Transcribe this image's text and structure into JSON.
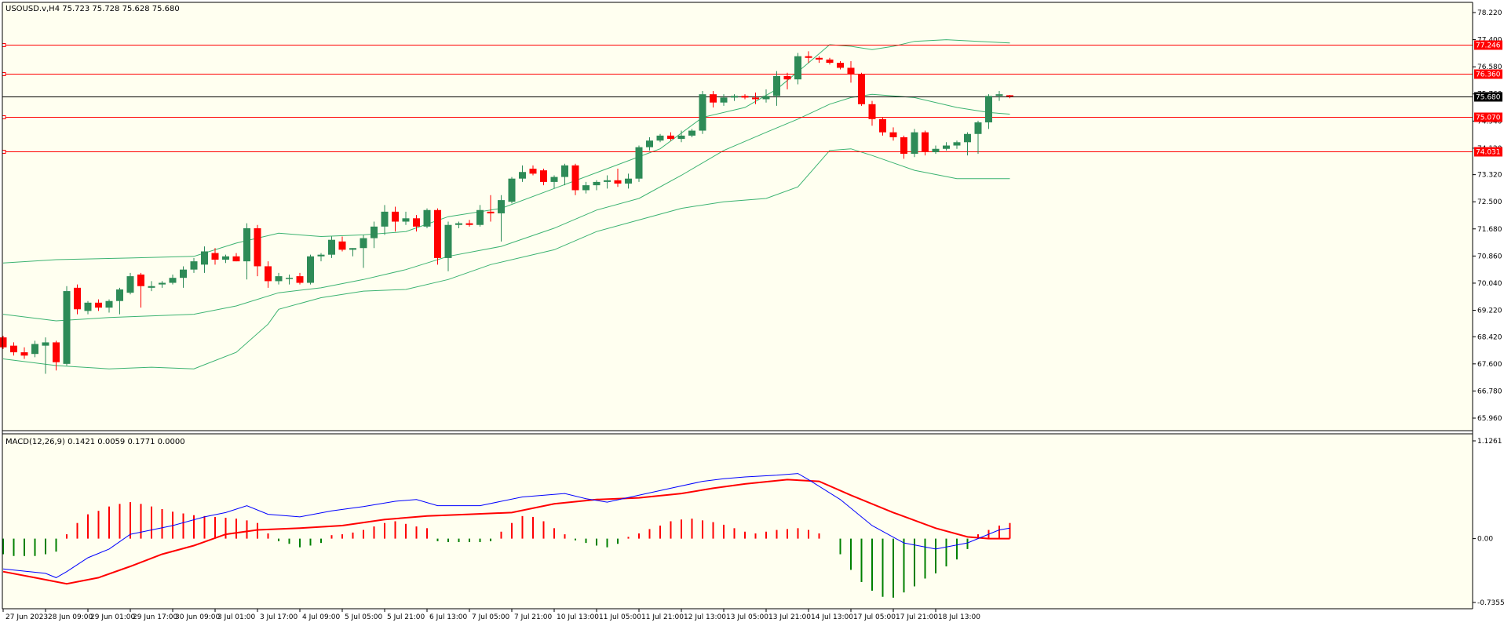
{
  "header": {
    "symbol_line": "USOUSD.v,H4  75.723 75.728 75.628 75.680",
    "macd_line": "MACD(12,26,9) 0.1421 0.0059 0.1771 0.0000"
  },
  "colors": {
    "background": "#fffff0",
    "axis_background": "#ffffff",
    "bull_candle": "#2e8b57",
    "bear_candle": "#ff0000",
    "bollinger": "#3cb371",
    "level_line": "#ff0000",
    "current_price_line": "#000000",
    "macd_line": "#0000ff",
    "signal_line": "#ff0000",
    "hist_positive": "#ff0000",
    "hist_negative": "#008000"
  },
  "chart_data": [
    {
      "type": "candlestick",
      "title": "USOUSD.v,H4",
      "ohlc_readout": [
        "75.723",
        "75.728",
        "75.628",
        "75.680"
      ],
      "y_ticks": [
        "78.220",
        "77.400",
        "76.580",
        "75.760",
        "74.940",
        "74.120",
        "73.320",
        "72.500",
        "71.680",
        "70.860",
        "70.040",
        "69.220",
        "68.420",
        "67.600",
        "66.780",
        "65.960"
      ],
      "ylim": [
        65.96,
        78.22
      ],
      "x_ticks": [
        "27 Jun 2023",
        "28 Jun 09:00",
        "29 Jun 01:00",
        "29 Jun 17:00",
        "30 Jun 09:00",
        "3 Jul 01:00",
        "3 Jul 17:00",
        "4 Jul 09:00",
        "5 Jul 05:00",
        "5 Jul 21:00",
        "6 Jul 13:00",
        "7 Jul 05:00",
        "7 Jul 21:00",
        "10 Jul 13:00",
        "11 Jul 05:00",
        "11 Jul 21:00",
        "12 Jul 13:00",
        "13 Jul 05:00",
        "13 Jul 21:00",
        "14 Jul 13:00",
        "17 Jul 05:00",
        "17 Jul 21:00",
        "18 Jul 13:00"
      ],
      "levels": [
        {
          "price": 77.246,
          "label": "77.246"
        },
        {
          "price": 76.36,
          "label": "76.360"
        },
        {
          "price": 75.07,
          "label": "75.070"
        },
        {
          "price": 74.031,
          "label": "74.031"
        }
      ],
      "current_price": {
        "price": 75.68,
        "label": "75.680"
      },
      "candles": [
        [
          68.4,
          68.45,
          68.05,
          68.1
        ],
        [
          68.15,
          68.25,
          67.85,
          67.95
        ],
        [
          67.95,
          68.1,
          67.75,
          67.85
        ],
        [
          67.9,
          68.3,
          67.8,
          68.2
        ],
        [
          68.15,
          68.4,
          67.3,
          68.25
        ],
        [
          68.25,
          68.3,
          67.4,
          67.65
        ],
        [
          67.6,
          69.95,
          67.55,
          69.8
        ],
        [
          69.9,
          70.0,
          69.1,
          69.25
        ],
        [
          69.2,
          69.5,
          69.1,
          69.45
        ],
        [
          69.45,
          69.55,
          69.2,
          69.3
        ],
        [
          69.3,
          69.55,
          69.15,
          69.5
        ],
        [
          69.5,
          69.9,
          69.1,
          69.85
        ],
        [
          69.75,
          70.35,
          69.7,
          70.25
        ],
        [
          70.3,
          70.35,
          69.3,
          69.95
        ],
        [
          69.9,
          70.1,
          69.8,
          69.95
        ],
        [
          70.0,
          70.1,
          69.9,
          70.05
        ],
        [
          70.05,
          70.3,
          70.0,
          70.2
        ],
        [
          70.2,
          70.55,
          69.9,
          70.45
        ],
        [
          70.45,
          70.8,
          70.35,
          70.7
        ],
        [
          70.6,
          71.15,
          70.35,
          71.0
        ],
        [
          70.95,
          71.1,
          70.6,
          70.75
        ],
        [
          70.75,
          70.9,
          70.65,
          70.85
        ],
        [
          70.85,
          70.95,
          70.7,
          70.7
        ],
        [
          70.7,
          71.85,
          70.15,
          71.7
        ],
        [
          71.7,
          71.8,
          70.25,
          70.55
        ],
        [
          70.55,
          70.7,
          69.9,
          70.1
        ],
        [
          70.1,
          70.35,
          70.0,
          70.25
        ],
        [
          70.2,
          70.3,
          70.0,
          70.2
        ],
        [
          70.25,
          70.35,
          70.0,
          70.05
        ],
        [
          70.05,
          70.9,
          70.0,
          70.85
        ],
        [
          70.85,
          70.95,
          70.7,
          70.9
        ],
        [
          70.9,
          71.45,
          70.8,
          71.35
        ],
        [
          71.3,
          71.45,
          71.0,
          71.05
        ],
        [
          71.05,
          71.1,
          70.85,
          71.1
        ],
        [
          71.1,
          71.5,
          70.5,
          71.4
        ],
        [
          71.4,
          71.9,
          71.1,
          71.75
        ],
        [
          71.75,
          72.4,
          71.5,
          72.2
        ],
        [
          72.2,
          72.35,
          71.6,
          71.9
        ],
        [
          71.9,
          72.2,
          71.8,
          72.0
        ],
        [
          72.0,
          72.1,
          71.6,
          71.75
        ],
        [
          71.75,
          72.3,
          71.7,
          72.25
        ],
        [
          72.25,
          72.3,
          70.6,
          70.8
        ],
        [
          70.8,
          71.9,
          70.4,
          71.8
        ],
        [
          71.8,
          71.9,
          71.7,
          71.85
        ],
        [
          71.85,
          71.95,
          71.75,
          71.8
        ],
        [
          71.8,
          72.4,
          71.75,
          72.25
        ],
        [
          72.2,
          72.7,
          71.9,
          72.15
        ],
        [
          72.15,
          72.7,
          71.3,
          72.55
        ],
        [
          72.5,
          73.25,
          72.45,
          73.2
        ],
        [
          73.2,
          73.6,
          73.1,
          73.4
        ],
        [
          73.5,
          73.6,
          73.3,
          73.35
        ],
        [
          73.45,
          73.5,
          73.0,
          73.1
        ],
        [
          73.1,
          73.3,
          72.9,
          73.25
        ],
        [
          73.25,
          73.65,
          73.0,
          73.6
        ],
        [
          73.6,
          73.65,
          72.7,
          72.85
        ],
        [
          72.85,
          73.1,
          72.75,
          73.0
        ],
        [
          73.0,
          73.15,
          72.85,
          73.1
        ],
        [
          73.1,
          73.3,
          72.9,
          73.15
        ],
        [
          73.15,
          73.5,
          72.95,
          73.05
        ],
        [
          73.05,
          73.35,
          72.9,
          73.2
        ],
        [
          73.2,
          74.2,
          73.1,
          74.15
        ],
        [
          74.15,
          74.45,
          74.05,
          74.35
        ],
        [
          74.35,
          74.55,
          74.3,
          74.5
        ],
        [
          74.5,
          74.6,
          74.35,
          74.4
        ],
        [
          74.4,
          74.65,
          74.3,
          74.5
        ],
        [
          74.5,
          74.7,
          74.45,
          74.65
        ],
        [
          74.65,
          75.85,
          74.55,
          75.75
        ],
        [
          75.75,
          75.85,
          75.35,
          75.5
        ],
        [
          75.5,
          75.75,
          75.4,
          75.65
        ],
        [
          75.65,
          75.75,
          75.55,
          75.7
        ],
        [
          75.7,
          75.75,
          75.6,
          75.65
        ],
        [
          75.65,
          75.8,
          75.45,
          75.6
        ],
        [
          75.6,
          75.9,
          75.5,
          75.7
        ],
        [
          75.7,
          76.45,
          75.4,
          76.3
        ],
        [
          76.3,
          76.4,
          75.9,
          76.2
        ],
        [
          76.2,
          77.0,
          76.05,
          76.9
        ],
        [
          76.9,
          77.05,
          76.7,
          76.85
        ],
        [
          76.85,
          76.9,
          76.7,
          76.8
        ],
        [
          76.8,
          76.85,
          76.65,
          76.7
        ],
        [
          76.7,
          76.75,
          76.5,
          76.55
        ],
        [
          76.55,
          76.75,
          76.1,
          76.35
        ],
        [
          76.35,
          76.4,
          75.4,
          75.45
        ],
        [
          75.45,
          75.55,
          74.8,
          75.0
        ],
        [
          75.0,
          75.05,
          74.5,
          74.6
        ],
        [
          74.6,
          74.75,
          74.35,
          74.45
        ],
        [
          74.45,
          74.5,
          73.8,
          73.95
        ],
        [
          73.95,
          74.7,
          73.85,
          74.6
        ],
        [
          74.6,
          74.65,
          73.9,
          74.0
        ],
        [
          74.0,
          74.2,
          73.95,
          74.1
        ],
        [
          74.1,
          74.3,
          74.05,
          74.2
        ],
        [
          74.2,
          74.35,
          74.1,
          74.3
        ],
        [
          74.3,
          74.6,
          73.9,
          74.55
        ],
        [
          74.55,
          74.95,
          73.95,
          74.9
        ],
        [
          74.9,
          75.75,
          74.7,
          75.7
        ],
        [
          75.7,
          75.85,
          75.55,
          75.75
        ],
        [
          75.72,
          75.73,
          75.63,
          75.68
        ]
      ],
      "bollinger_upper": [
        [
          0,
          70.65
        ],
        [
          5,
          70.75
        ],
        [
          12,
          70.8
        ],
        [
          18,
          70.85
        ],
        [
          22,
          71.25
        ],
        [
          26,
          71.55
        ],
        [
          30,
          71.45
        ],
        [
          34,
          71.5
        ],
        [
          38,
          71.6
        ],
        [
          42,
          72.05
        ],
        [
          47,
          72.3
        ],
        [
          52,
          72.9
        ],
        [
          57,
          73.5
        ],
        [
          62,
          74.1
        ],
        [
          66,
          75.05
        ],
        [
          70,
          75.35
        ],
        [
          73,
          75.9
        ],
        [
          76,
          76.7
        ],
        [
          78,
          77.25
        ],
        [
          80,
          77.2
        ],
        [
          82,
          77.1
        ],
        [
          84,
          77.2
        ],
        [
          86,
          77.35
        ],
        [
          89,
          77.4
        ],
        [
          92,
          77.35
        ],
        [
          95,
          77.3
        ]
      ],
      "bollinger_middle": [
        [
          0,
          69.1
        ],
        [
          5,
          68.9
        ],
        [
          10,
          69.0
        ],
        [
          18,
          69.1
        ],
        [
          22,
          69.35
        ],
        [
          26,
          69.75
        ],
        [
          30,
          69.9
        ],
        [
          34,
          70.15
        ],
        [
          38,
          70.45
        ],
        [
          42,
          70.85
        ],
        [
          47,
          71.15
        ],
        [
          52,
          71.7
        ],
        [
          56,
          72.25
        ],
        [
          60,
          72.6
        ],
        [
          64,
          73.3
        ],
        [
          68,
          74.05
        ],
        [
          72,
          74.6
        ],
        [
          75,
          75.0
        ],
        [
          78,
          75.45
        ],
        [
          80,
          75.65
        ],
        [
          82,
          75.75
        ],
        [
          86,
          75.65
        ],
        [
          90,
          75.35
        ],
        [
          93,
          75.2
        ],
        [
          95,
          75.15
        ]
      ],
      "bollinger_lower": [
        [
          0,
          67.75
        ],
        [
          5,
          67.55
        ],
        [
          10,
          67.45
        ],
        [
          14,
          67.5
        ],
        [
          18,
          67.45
        ],
        [
          22,
          67.95
        ],
        [
          25,
          68.8
        ],
        [
          26,
          69.25
        ],
        [
          30,
          69.6
        ],
        [
          34,
          69.8
        ],
        [
          38,
          69.85
        ],
        [
          42,
          70.15
        ],
        [
          46,
          70.6
        ],
        [
          52,
          71.05
        ],
        [
          56,
          71.6
        ],
        [
          60,
          71.95
        ],
        [
          64,
          72.3
        ],
        [
          68,
          72.5
        ],
        [
          72,
          72.6
        ],
        [
          75,
          72.95
        ],
        [
          78,
          74.05
        ],
        [
          80,
          74.1
        ],
        [
          82,
          73.9
        ],
        [
          86,
          73.45
        ],
        [
          90,
          73.2
        ],
        [
          95,
          73.2
        ]
      ]
    },
    {
      "type": "line",
      "title": "MACD(12,26,9)",
      "readout": [
        "0.1421",
        "0.0059",
        "0.1771",
        "0.0000"
      ],
      "y_ticks": [
        "1.1261",
        "0.00",
        "-0.7355"
      ],
      "ylim": [
        -0.7355,
        1.1261
      ],
      "histogram": [
        -0.18,
        -0.2,
        -0.2,
        -0.2,
        -0.18,
        -0.15,
        0.05,
        0.18,
        0.28,
        0.32,
        0.37,
        0.4,
        0.42,
        0.4,
        0.37,
        0.34,
        0.31,
        0.29,
        0.27,
        0.26,
        0.25,
        0.24,
        0.23,
        0.21,
        0.18,
        0.06,
        -0.03,
        -0.06,
        -0.1,
        -0.08,
        -0.05,
        0.04,
        0.05,
        0.07,
        0.1,
        0.14,
        0.18,
        0.2,
        0.17,
        0.14,
        0.12,
        -0.03,
        -0.04,
        -0.04,
        -0.04,
        -0.04,
        -0.03,
        0.08,
        0.18,
        0.26,
        0.25,
        0.2,
        0.12,
        0.05,
        -0.02,
        -0.05,
        -0.08,
        -0.1,
        -0.06,
        0.02,
        0.06,
        0.11,
        0.15,
        0.2,
        0.22,
        0.23,
        0.21,
        0.19,
        0.16,
        0.12,
        0.08,
        0.06,
        0.08,
        0.1,
        0.11,
        0.12,
        0.1,
        0.06,
        0.0,
        -0.18,
        -0.36,
        -0.5,
        -0.6,
        -0.67,
        -0.68,
        -0.62,
        -0.55,
        -0.46,
        -0.4,
        -0.32,
        -0.24,
        -0.12,
        0.05,
        0.1,
        0.15,
        0.18
      ]
    }
  ]
}
